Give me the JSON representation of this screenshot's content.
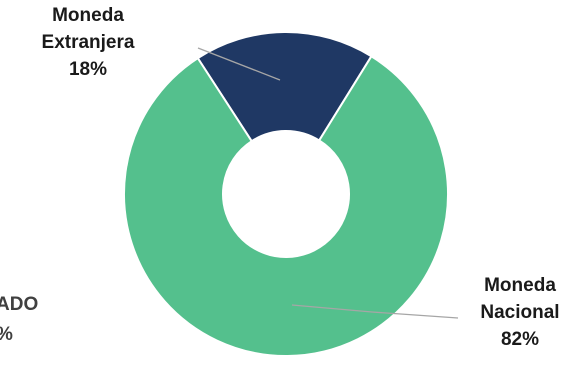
{
  "chart_data": {
    "type": "pie",
    "variant": "donut",
    "title": "",
    "slices": [
      {
        "label_lines": [
          "Moneda",
          "Extranjera"
        ],
        "pct_text": "18%",
        "value": 18,
        "color": "#1f3864"
      },
      {
        "label_lines": [
          "Moneda",
          "Nacional"
        ],
        "pct_text": "82%",
        "value": 82,
        "color": "#54c08d"
      }
    ],
    "legend": "none",
    "background": "#ffffff"
  },
  "partial_label": {
    "lines": [
      "ADO",
      "%"
    ]
  }
}
